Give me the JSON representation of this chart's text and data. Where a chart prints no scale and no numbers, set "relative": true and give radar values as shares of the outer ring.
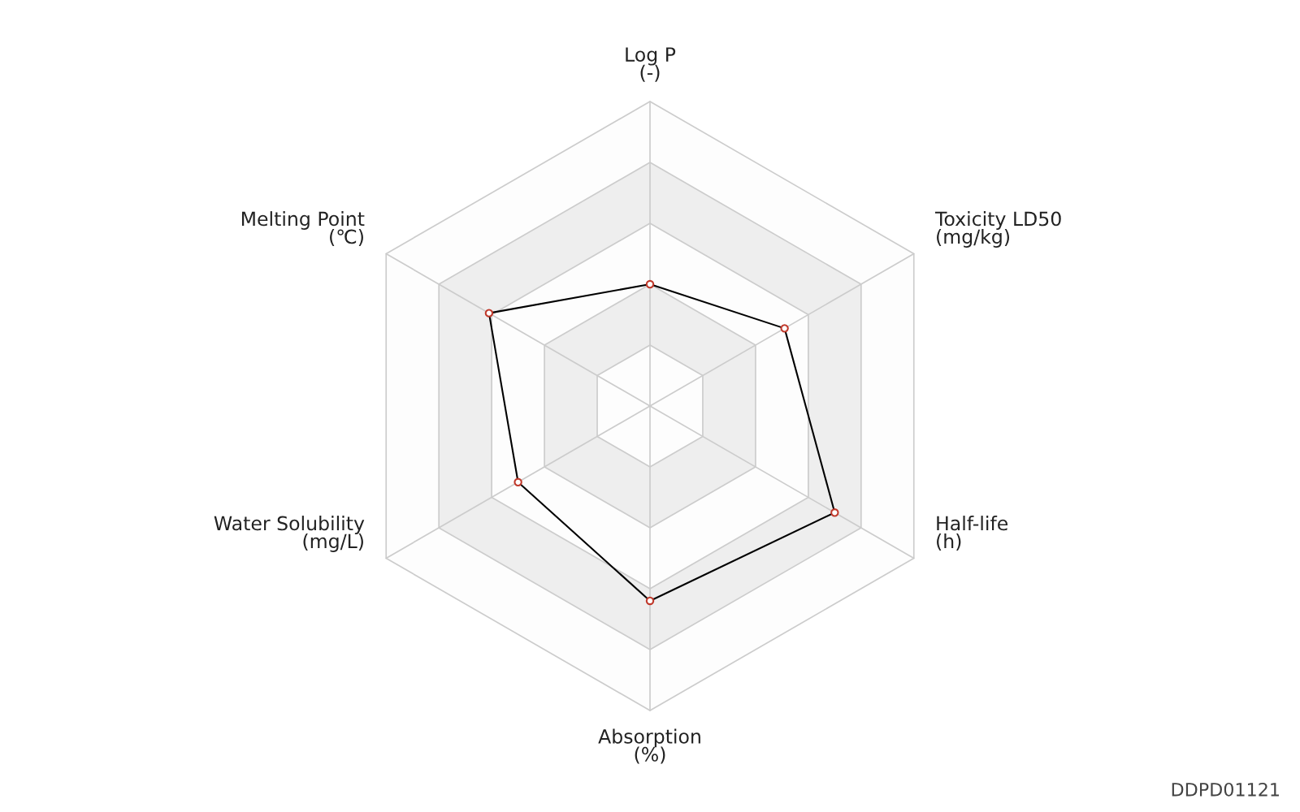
{
  "chart_data": {
    "type": "radar",
    "relative": true,
    "categories": [
      "Log P\n(-)",
      "Toxicity LD50\n(mg/kg)",
      "Half-life\n(h)",
      "Absorption\n(%)",
      "Water Solubility\n(mg/L)",
      "Melting Point\n(℃)"
    ],
    "series": [
      {
        "color": "#000000",
        "values": [
          0.4,
          0.51,
          0.7,
          0.64,
          0.5,
          0.61
        ]
      }
    ],
    "marker": "circle",
    "grid": true,
    "annotations": [
      "DDPD01121"
    ]
  }
}
